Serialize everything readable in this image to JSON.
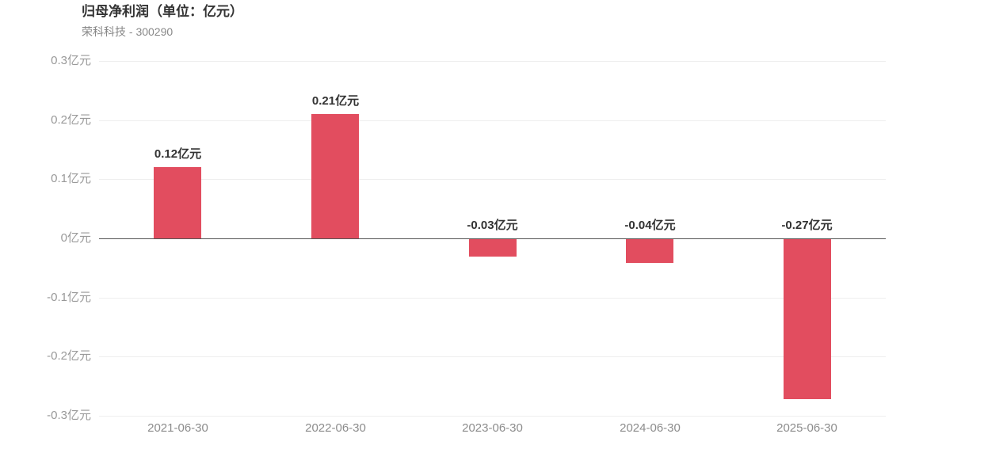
{
  "header": {
    "title": "归母净利润（单位：亿元）",
    "subtitle": "荣科科技 - 300290"
  },
  "chart_data": {
    "type": "bar",
    "title": "归母净利润（单位：亿元）",
    "subtitle": "荣科科技 - 300290",
    "unit": "亿元",
    "categories": [
      "2021-06-30",
      "2022-06-30",
      "2023-06-30",
      "2024-06-30",
      "2025-06-30"
    ],
    "values": [
      0.12,
      0.21,
      -0.03,
      -0.04,
      -0.27
    ],
    "value_labels": [
      "0.12亿元",
      "0.21亿元",
      "-0.03亿元",
      "-0.04亿元",
      "-0.27亿元"
    ],
    "xlabel": "",
    "ylabel": "",
    "ylim": [
      -0.3,
      0.3
    ],
    "ytick_values": [
      0.3,
      0.2,
      0.1,
      0,
      -0.1,
      -0.2,
      -0.3
    ],
    "ytick_labels": [
      "0.3亿元",
      "0.2亿元",
      "0.1亿元",
      "0亿元",
      "-0.1亿元",
      "-0.2亿元",
      "-0.3亿元"
    ],
    "grid": "on",
    "legend": "none",
    "bar_color": "#e24d5f",
    "grid_color": "#eeeeee",
    "zero_line_color": "#555555",
    "tick_label_color": "#999999",
    "value_label_color": "#333333"
  }
}
